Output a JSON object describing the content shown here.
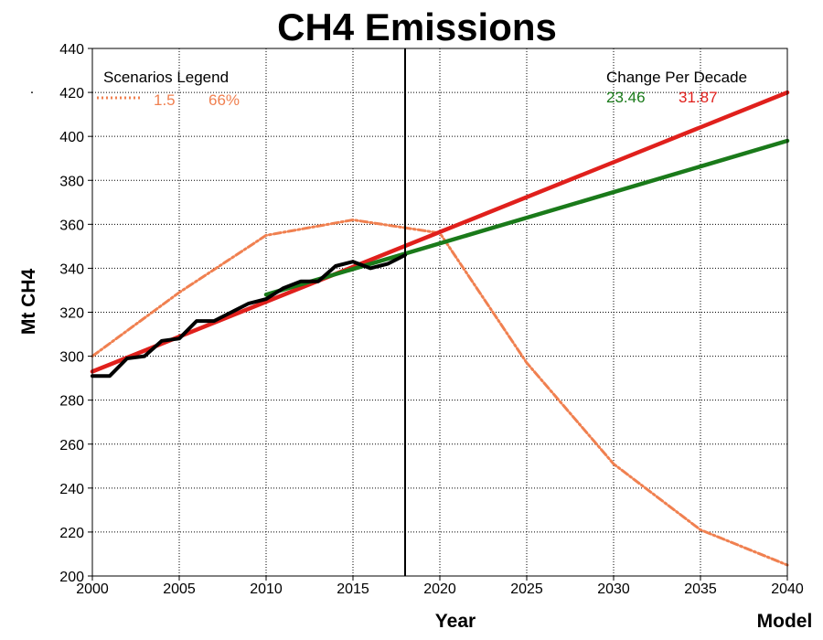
{
  "chart_data": {
    "type": "line",
    "title": "CH4 Emissions",
    "xlabel": "Year",
    "ylabel": "Mt CH4",
    "corner_label": "Model",
    "stray_mark": ".",
    "xlim": [
      2000,
      2040
    ],
    "ylim": [
      200,
      440
    ],
    "x_ticks": [
      2000,
      2005,
      2010,
      2015,
      2020,
      2025,
      2030,
      2035,
      2040
    ],
    "y_ticks": [
      200,
      220,
      240,
      260,
      280,
      300,
      320,
      340,
      360,
      380,
      400,
      420,
      440
    ],
    "grid": true,
    "vertical_marker_x": 2018,
    "legend_left": {
      "title": "Scenarios Legend",
      "entries": [
        {
          "label": "1.5",
          "color": "#f08050"
        },
        {
          "label": "66%",
          "color": "#f08050"
        }
      ]
    },
    "legend_right": {
      "title": "Change Per Decade",
      "values": [
        {
          "label": "23.46",
          "color": "#1a7a1a"
        },
        {
          "label": "31.87",
          "color": "#e0201c"
        }
      ]
    },
    "series": [
      {
        "color": "#f08050",
        "style": "dashdot",
        "x": [
          2000,
          2005,
          2010,
          2015,
          2020,
          2025,
          2030,
          2035,
          2040
        ],
        "y": [
          300,
          329,
          355,
          362,
          356,
          297,
          251,
          221,
          205
        ]
      },
      {
        "color": "#e0201c",
        "style": "solid",
        "x": [
          2000,
          2040
        ],
        "y": [
          293,
          420
        ]
      },
      {
        "color": "#1a7a1a",
        "style": "solid",
        "x": [
          2010,
          2040
        ],
        "y": [
          328,
          398
        ]
      },
      {
        "color": "#000000",
        "style": "solid",
        "x": [
          2000,
          2001,
          2002,
          2003,
          2004,
          2005,
          2006,
          2007,
          2008,
          2009,
          2010,
          2011,
          2012,
          2013,
          2014,
          2015,
          2016,
          2017,
          2018
        ],
        "y": [
          291,
          291,
          299,
          300,
          307,
          308,
          316,
          316,
          320,
          324,
          326,
          331,
          334,
          334,
          341,
          343,
          340,
          342,
          346
        ]
      }
    ]
  }
}
